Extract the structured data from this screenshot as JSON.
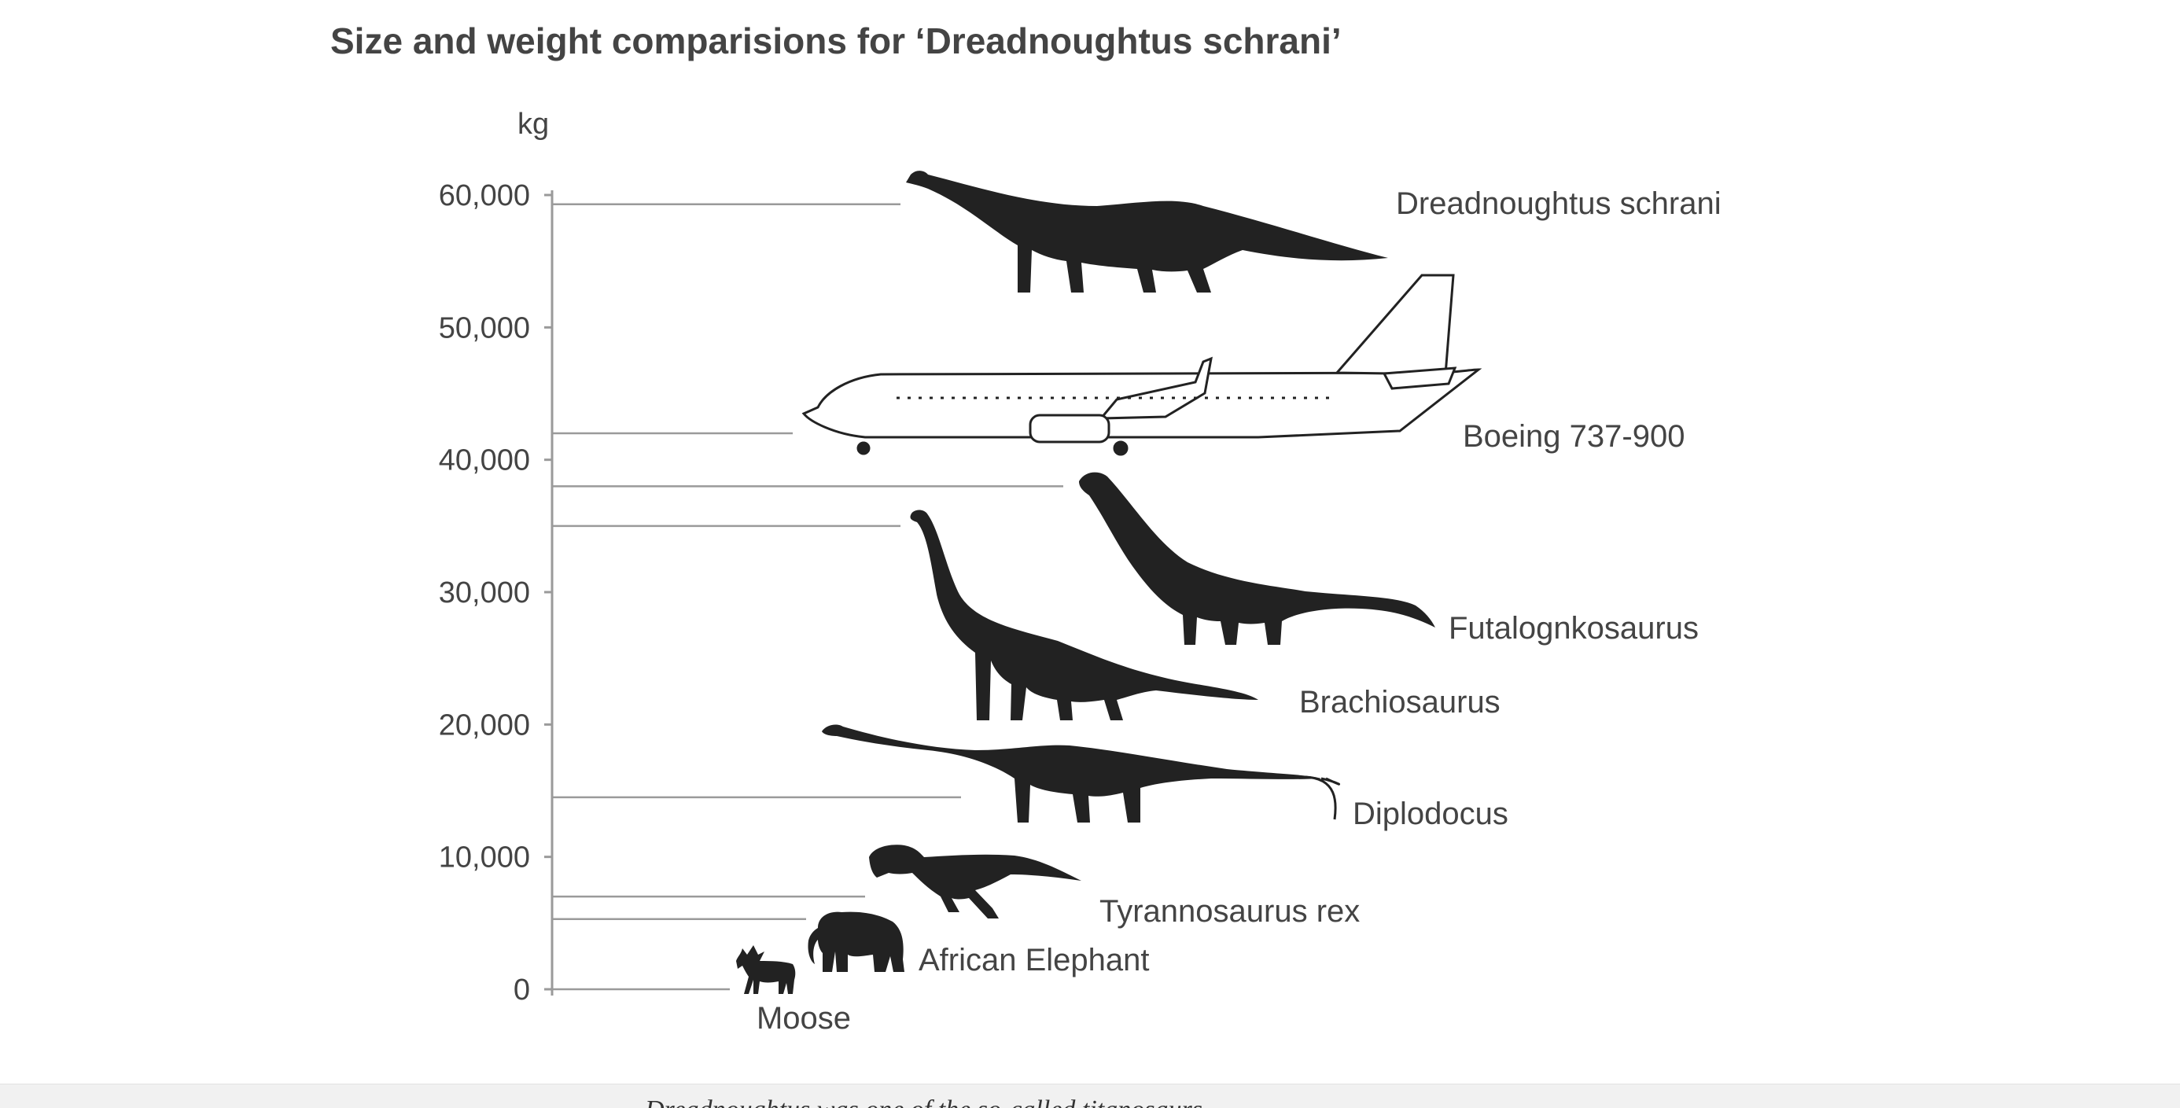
{
  "chart_data": {
    "type": "scatter",
    "title": "Size and weight comparisions for ‘Dreadnoughtus schrani’",
    "ylabel": "kg",
    "ylim": [
      0,
      60000
    ],
    "yticks": [
      "0",
      "10,000",
      "20,000",
      "30,000",
      "40,000",
      "50,000",
      "60,000"
    ],
    "ytick_values": [
      0,
      10000,
      20000,
      30000,
      40000,
      50000,
      60000
    ],
    "grid": false,
    "items": [
      {
        "name": "Dreadnoughtus schrani",
        "weight_kg": 59300,
        "icon": "long-neck-sauropod-icon"
      },
      {
        "name": "Boeing 737-900",
        "weight_kg": 42000,
        "icon": "airplane-icon"
      },
      {
        "name": "Futalognkosaurus",
        "weight_kg": 38000,
        "icon": "sauropod-icon"
      },
      {
        "name": "Brachiosaurus",
        "weight_kg": 35000,
        "icon": "brachiosaurus-icon"
      },
      {
        "name": "Diplodocus",
        "weight_kg": 14500,
        "icon": "diplodocus-icon"
      },
      {
        "name": "Tyrannosaurus rex",
        "weight_kg": 7000,
        "icon": "tyrannosaurus-icon"
      },
      {
        "name": "African Elephant",
        "weight_kg": 5300,
        "icon": "elephant-icon"
      },
      {
        "name": "Moose",
        "weight_kg": 0,
        "icon": "moose-icon"
      }
    ]
  },
  "caption_fragment": "Dreadnoughtus was one of the so-called titanosaurs"
}
